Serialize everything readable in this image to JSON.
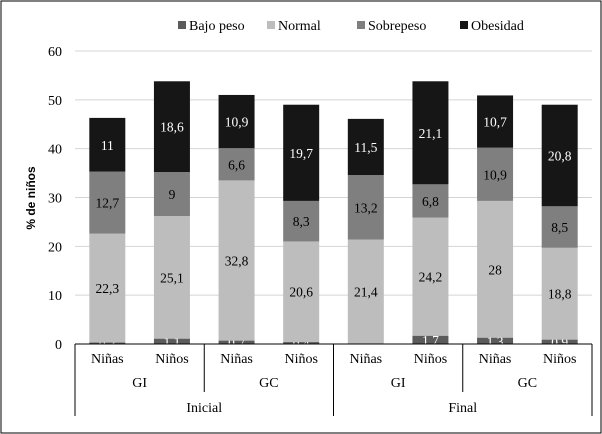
{
  "chart_data": {
    "type": "bar",
    "stacked": true,
    "ylabel": "% de niños",
    "ylim": [
      0,
      60
    ],
    "yticks": [
      "0",
      "10",
      "20",
      "30",
      "40",
      "50",
      "60"
    ],
    "legend_position": "top",
    "categories": [
      "Niñas",
      "Niños",
      "Niñas",
      "Niños",
      "Niñas",
      "Niños",
      "Niñas",
      "Niños"
    ],
    "groups": [
      {
        "label": "GI",
        "span": 2
      },
      {
        "label": "GC",
        "span": 2
      },
      {
        "label": "GI",
        "span": 2
      },
      {
        "label": "GC",
        "span": 2
      }
    ],
    "supergroups": [
      {
        "label": "Inicial",
        "span": 4
      },
      {
        "label": "Final",
        "span": 4
      }
    ],
    "series": [
      {
        "name": "Bajo peso",
        "color": "#5b5b5b",
        "text_color": "#ffffff",
        "values": [
          0.3,
          1.1,
          0.7,
          0.4,
          0,
          1.7,
          1.3,
          0.9
        ],
        "labels": [
          "0,3",
          "1,1",
          "0,7",
          "0,4",
          "",
          "1,7",
          "1,3",
          "0,9"
        ]
      },
      {
        "name": "Normal",
        "color": "#bdbdbd",
        "text_color": "#000000",
        "values": [
          22.3,
          25.1,
          32.8,
          20.6,
          21.4,
          24.2,
          28,
          18.8
        ],
        "labels": [
          "22,3",
          "25,1",
          "32,8",
          "20,6",
          "21,4",
          "24,2",
          "28",
          "18,8"
        ]
      },
      {
        "name": "Sobrepeso",
        "color": "#7f7f7f",
        "text_color": "#000000",
        "values": [
          12.7,
          9,
          6.6,
          8.3,
          13.2,
          6.8,
          10.9,
          8.5
        ],
        "labels": [
          "12,7",
          "9",
          "6,6",
          "8,3",
          "13,2",
          "6,8",
          "10,9",
          "8,5"
        ]
      },
      {
        "name": "Obesidad",
        "color": "#161616",
        "text_color": "#ffffff",
        "values": [
          11,
          18.6,
          10.9,
          19.7,
          11.5,
          21.1,
          10.7,
          20.8
        ],
        "labels": [
          "11",
          "18,6",
          "10,9",
          "19,7",
          "11,5",
          "21,1",
          "10,7",
          "20,8"
        ]
      }
    ]
  }
}
